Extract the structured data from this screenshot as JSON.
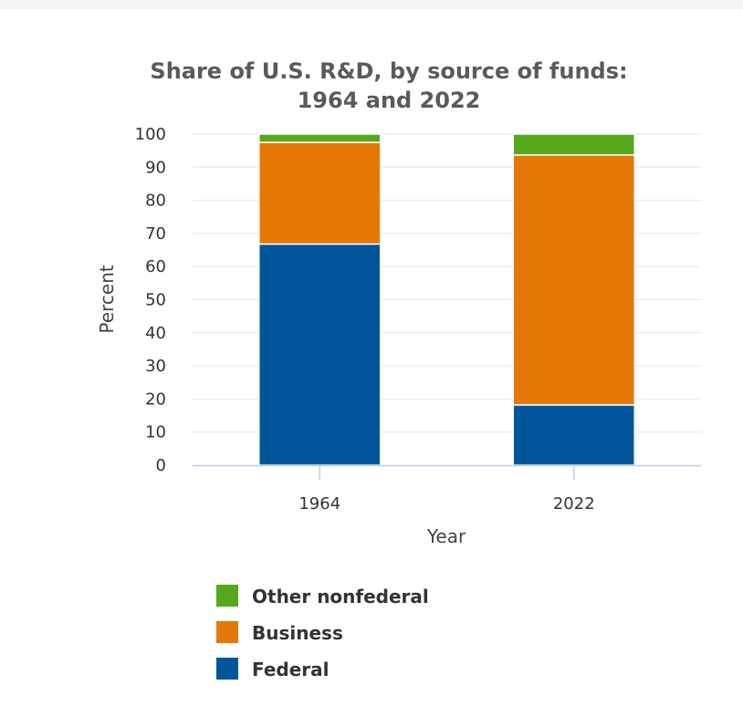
{
  "chart_data": {
    "type": "bar",
    "stacked": true,
    "title_lines": [
      "Share of U.S. R&D, by source of funds:",
      "1964 and 2022"
    ],
    "categories": [
      "1964",
      "2022"
    ],
    "series": [
      {
        "name": "Federal",
        "values": [
          66.8,
          18.2
        ],
        "color": "#01569b"
      },
      {
        "name": "Business",
        "values": [
          30.7,
          75.5
        ],
        "color": "#e57705"
      },
      {
        "name": "Other nonfederal",
        "values": [
          2.5,
          6.3
        ],
        "color": "#55a71b"
      }
    ],
    "xlabel": "Year",
    "ylabel": "Percent",
    "ylim": [
      0,
      100
    ],
    "yticks": [
      0,
      10,
      20,
      30,
      40,
      50,
      60,
      70,
      80,
      90,
      100
    ],
    "grid": true,
    "legend_position": "bottom-left",
    "legend_order": [
      "Other nonfederal",
      "Business",
      "Federal"
    ]
  }
}
